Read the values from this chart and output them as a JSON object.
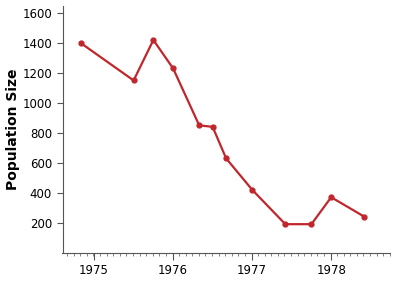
{
  "x": [
    1974.83,
    1975.5,
    1975.75,
    1976.0,
    1976.33,
    1976.5,
    1976.67,
    1977.0,
    1977.42,
    1977.75,
    1978.0,
    1978.42
  ],
  "y": [
    1400,
    1150,
    1420,
    1230,
    850,
    840,
    630,
    420,
    190,
    190,
    370,
    240
  ],
  "line_color": "#c0272d",
  "marker": "o",
  "marker_size": 3.5,
  "line_width": 1.6,
  "ylabel": "Population Size",
  "ylim": [
    0,
    1650
  ],
  "xlim": [
    1974.6,
    1978.75
  ],
  "yticks": [
    200,
    400,
    600,
    800,
    1000,
    1200,
    1400,
    1600
  ],
  "xticks": [
    1975,
    1976,
    1977,
    1978
  ],
  "xtick_labels": [
    "1975",
    "1976",
    "1977",
    "1978"
  ],
  "ylabel_fontsize": 10,
  "tick_fontsize": 8.5,
  "background_color": "#ffffff"
}
